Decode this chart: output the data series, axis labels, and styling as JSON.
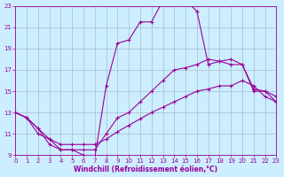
{
  "xlabel": "Windchill (Refroidissement éolien,°C)",
  "bg_color": "#cceeff",
  "line_color": "#990099",
  "grid_color": "#aabbcc",
  "xlim": [
    0,
    23
  ],
  "ylim": [
    9,
    23
  ],
  "xticks": [
    0,
    1,
    2,
    3,
    4,
    5,
    6,
    7,
    8,
    9,
    10,
    11,
    12,
    13,
    14,
    15,
    16,
    17,
    18,
    19,
    20,
    21,
    22,
    23
  ],
  "yticks": [
    9,
    11,
    13,
    15,
    17,
    19,
    21,
    23
  ],
  "line1_x": [
    0,
    1,
    2,
    3,
    4,
    5,
    6,
    7,
    8,
    9,
    10,
    11,
    12,
    13,
    14,
    15,
    16,
    17,
    18,
    19,
    20,
    21,
    22,
    23
  ],
  "line1_y": [
    13,
    12.5,
    11,
    10.5,
    9.5,
    9.5,
    9.0,
    8.8,
    15.5,
    19.5,
    19.8,
    21.5,
    21.5,
    23.5,
    23.5,
    23.5,
    22.5,
    17.5,
    17.8,
    18.0,
    17.5,
    15.0,
    15.0,
    14.0
  ],
  "line2_x": [
    0,
    1,
    2,
    3,
    4,
    5,
    6,
    7,
    8,
    9,
    10,
    11,
    12,
    13,
    14,
    15,
    16,
    17,
    18,
    19,
    20,
    21,
    22,
    23
  ],
  "line2_y": [
    13,
    12.5,
    11.5,
    10,
    9.5,
    9.5,
    9.5,
    9.5,
    11,
    12.5,
    13,
    14,
    15,
    16,
    17,
    17.2,
    17.5,
    18.0,
    17.8,
    17.5,
    17.5,
    15.2,
    15.0,
    14.5
  ],
  "line3_x": [
    0,
    1,
    2,
    3,
    4,
    5,
    6,
    7,
    8,
    9,
    10,
    11,
    12,
    13,
    14,
    15,
    16,
    17,
    18,
    19,
    20,
    21,
    22,
    23
  ],
  "line3_y": [
    13,
    12.5,
    11.5,
    10.5,
    10,
    10,
    10,
    10,
    10.5,
    11.2,
    11.8,
    12.4,
    13.0,
    13.5,
    14.0,
    14.5,
    15.0,
    15.2,
    15.5,
    15.5,
    16.0,
    15.5,
    14.5,
    14.0
  ]
}
